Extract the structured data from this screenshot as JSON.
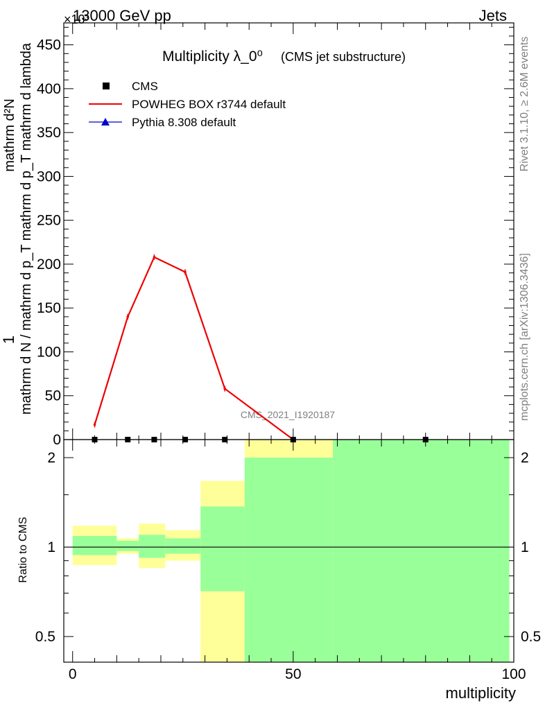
{
  "header": {
    "left": "13000 GeV pp",
    "right": "Jets",
    "exponent": "×10³"
  },
  "side": {
    "rivet": "Rivet 3.1.10, ≥ 2.6M events",
    "mcplots": "mcplots.cern.ch [arXiv:1306.3436]"
  },
  "chart_data": [
    {
      "type": "line",
      "title": "Multiplicity λ_0⁰",
      "subtitle": "(CMS jet substructure)",
      "watermark": "CMS_2021_I1920187",
      "ylabel_numerator": "1",
      "ylabel": "mathrm d N / mathrm d p_T mathrm d p_T mathrm d lambda",
      "ylabel_right": "mathrm d²N",
      "ylim": [
        0,
        475
      ],
      "xlim": [
        -2,
        100
      ],
      "yticks": [
        0,
        50,
        100,
        150,
        200,
        250,
        300,
        350,
        400,
        450
      ],
      "legend": [
        {
          "name": "CMS",
          "marker": "square",
          "color": "#000000"
        },
        {
          "name": "POWHEG BOX r3744 default",
          "marker": "line",
          "color": "#ee0000"
        },
        {
          "name": "Pythia 8.308 default",
          "marker": "triangle",
          "color": "#0000cc"
        }
      ],
      "series": [
        {
          "name": "CMS",
          "color": "#000000",
          "x": [
            5,
            12.5,
            18.5,
            25.5,
            34.5,
            50,
            80
          ],
          "y": [
            0,
            0,
            0,
            0,
            0,
            0,
            0
          ]
        },
        {
          "name": "POWHEG BOX r3744 default",
          "color": "#ee0000",
          "x": [
            5,
            12.5,
            18.5,
            25.5,
            34.5,
            50
          ],
          "y": [
            17,
            140,
            208,
            191,
            58,
            0
          ]
        }
      ]
    },
    {
      "type": "area",
      "ylabel": "Ratio to CMS",
      "xlabel": "multiplicity",
      "ylim": [
        0.41,
        2.3
      ],
      "yscale": "log",
      "yticks": [
        0.5,
        1,
        2
      ],
      "xticks": [
        0,
        50,
        100
      ],
      "reference_line": 1,
      "bands": [
        {
          "xlo": 0,
          "xhi": 10,
          "yellow": [
            0.87,
            1.18
          ],
          "green": [
            0.94,
            1.09
          ]
        },
        {
          "xlo": 10,
          "xhi": 15,
          "yellow": [
            0.95,
            1.07
          ],
          "green": [
            0.97,
            1.05
          ]
        },
        {
          "xlo": 15,
          "xhi": 21,
          "yellow": [
            0.85,
            1.2
          ],
          "green": [
            0.92,
            1.1
          ]
        },
        {
          "xlo": 21,
          "xhi": 29,
          "yellow": [
            0.9,
            1.14
          ],
          "green": [
            0.95,
            1.07
          ]
        },
        {
          "xlo": 29,
          "xhi": 39,
          "yellow": [
            0.41,
            1.67
          ],
          "green": [
            0.71,
            1.37
          ]
        },
        {
          "xlo": 39,
          "xhi": 59,
          "yellow": [
            0.41,
            2.3
          ],
          "green": [
            0.41,
            2.0
          ]
        },
        {
          "xlo": 59,
          "xhi": 99,
          "yellow": [
            0.41,
            2.3
          ],
          "green": [
            0.41,
            2.3
          ]
        }
      ]
    }
  ]
}
